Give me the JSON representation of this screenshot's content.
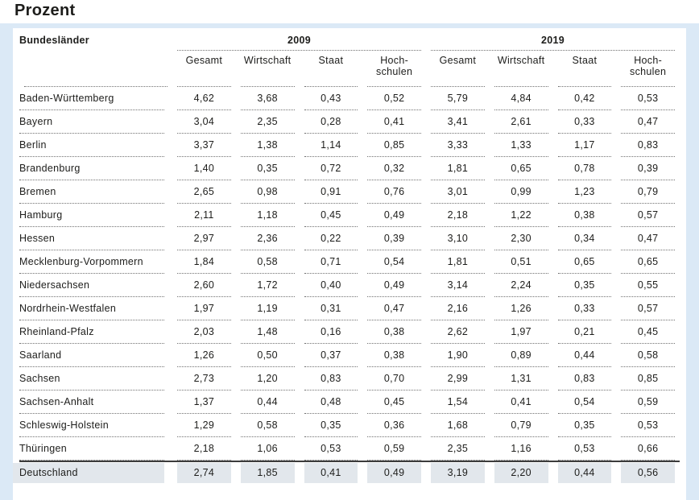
{
  "page_title": "Prozent",
  "colors": {
    "panel_bg": "#dbe9f6",
    "card_bg": "#ffffff",
    "total_row_bg": "#e2e7ec",
    "solid_rule": "#3c3c3c",
    "dotted_rule": "#707070",
    "text": "#1d1d1b"
  },
  "chart_data": {
    "type": "table",
    "title": "Prozent",
    "row_header": "Bundesländer",
    "col_groups": [
      "2009",
      "2019"
    ],
    "sub_columns": [
      "Gesamt",
      "Wirtschaft",
      "Staat",
      "Hoch-\nschulen"
    ],
    "rows": [
      {
        "label": "Baden-Württemberg",
        "values": [
          "4,62",
          "3,68",
          "0,43",
          "0,52",
          "5,79",
          "4,84",
          "0,42",
          "0,53"
        ]
      },
      {
        "label": "Bayern",
        "values": [
          "3,04",
          "2,35",
          "0,28",
          "0,41",
          "3,41",
          "2,61",
          "0,33",
          "0,47"
        ]
      },
      {
        "label": "Berlin",
        "values": [
          "3,37",
          "1,38",
          "1,14",
          "0,85",
          "3,33",
          "1,33",
          "1,17",
          "0,83"
        ]
      },
      {
        "label": "Brandenburg",
        "values": [
          "1,40",
          "0,35",
          "0,72",
          "0,32",
          "1,81",
          "0,65",
          "0,78",
          "0,39"
        ]
      },
      {
        "label": "Bremen",
        "values": [
          "2,65",
          "0,98",
          "0,91",
          "0,76",
          "3,01",
          "0,99",
          "1,23",
          "0,79"
        ]
      },
      {
        "label": "Hamburg",
        "values": [
          "2,11",
          "1,18",
          "0,45",
          "0,49",
          "2,18",
          "1,22",
          "0,38",
          "0,57"
        ]
      },
      {
        "label": "Hessen",
        "values": [
          "2,97",
          "2,36",
          "0,22",
          "0,39",
          "3,10",
          "2,30",
          "0,34",
          "0,47"
        ]
      },
      {
        "label": "Mecklenburg-Vorpommern",
        "values": [
          "1,84",
          "0,58",
          "0,71",
          "0,54",
          "1,81",
          "0,51",
          "0,65",
          "0,65"
        ]
      },
      {
        "label": "Niedersachsen",
        "values": [
          "2,60",
          "1,72",
          "0,40",
          "0,49",
          "3,14",
          "2,24",
          "0,35",
          "0,55"
        ]
      },
      {
        "label": "Nordrhein-Westfalen",
        "values": [
          "1,97",
          "1,19",
          "0,31",
          "0,47",
          "2,16",
          "1,26",
          "0,33",
          "0,57"
        ]
      },
      {
        "label": "Rheinland-Pfalz",
        "values": [
          "2,03",
          "1,48",
          "0,16",
          "0,38",
          "2,62",
          "1,97",
          "0,21",
          "0,45"
        ]
      },
      {
        "label": "Saarland",
        "values": [
          "1,26",
          "0,50",
          "0,37",
          "0,38",
          "1,90",
          "0,89",
          "0,44",
          "0,58"
        ]
      },
      {
        "label": "Sachsen",
        "values": [
          "2,73",
          "1,20",
          "0,83",
          "0,70",
          "2,99",
          "1,31",
          "0,83",
          "0,85"
        ]
      },
      {
        "label": "Sachsen-Anhalt",
        "values": [
          "1,37",
          "0,44",
          "0,48",
          "0,45",
          "1,54",
          "0,41",
          "0,54",
          "0,59"
        ]
      },
      {
        "label": "Schleswig-Holstein",
        "values": [
          "1,29",
          "0,58",
          "0,35",
          "0,36",
          "1,68",
          "0,79",
          "0,35",
          "0,53"
        ]
      },
      {
        "label": "Thüringen",
        "values": [
          "2,18",
          "1,06",
          "0,53",
          "0,59",
          "2,35",
          "1,16",
          "0,53",
          "0,66"
        ]
      }
    ],
    "total_row": {
      "label": "Deutschland",
      "values": [
        "2,74",
        "1,85",
        "0,41",
        "0,49",
        "3,19",
        "2,20",
        "0,44",
        "0,56"
      ]
    }
  }
}
